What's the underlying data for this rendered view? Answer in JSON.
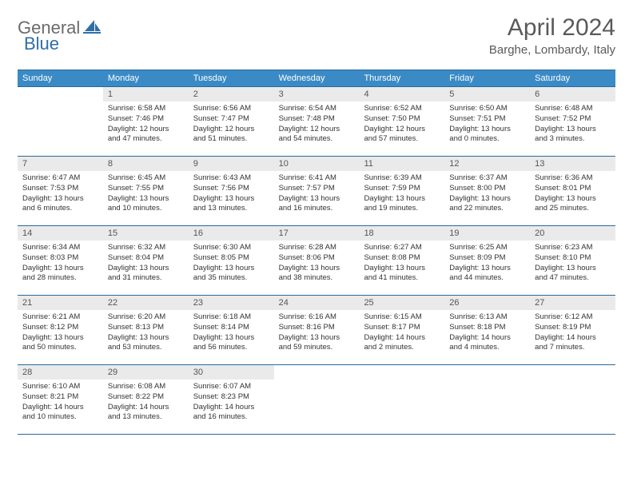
{
  "logo": {
    "part1": "General",
    "part2": "Blue"
  },
  "title": "April 2024",
  "location": "Barghe, Lombardy, Italy",
  "colors": {
    "header_bg": "#3a8ac6",
    "header_border": "#2a6a9a",
    "daynum_bg": "#eaeaea",
    "text": "#333333",
    "title_text": "#5a5a5a",
    "logo_gray": "#6b6b6b",
    "logo_blue": "#2f6fa8"
  },
  "weekdays": [
    "Sunday",
    "Monday",
    "Tuesday",
    "Wednesday",
    "Thursday",
    "Friday",
    "Saturday"
  ],
  "weeks": [
    [
      {
        "empty": true
      },
      {
        "n": "1",
        "sunrise": "6:58 AM",
        "sunset": "7:46 PM",
        "daylight": "12 hours and 47 minutes."
      },
      {
        "n": "2",
        "sunrise": "6:56 AM",
        "sunset": "7:47 PM",
        "daylight": "12 hours and 51 minutes."
      },
      {
        "n": "3",
        "sunrise": "6:54 AM",
        "sunset": "7:48 PM",
        "daylight": "12 hours and 54 minutes."
      },
      {
        "n": "4",
        "sunrise": "6:52 AM",
        "sunset": "7:50 PM",
        "daylight": "12 hours and 57 minutes."
      },
      {
        "n": "5",
        "sunrise": "6:50 AM",
        "sunset": "7:51 PM",
        "daylight": "13 hours and 0 minutes."
      },
      {
        "n": "6",
        "sunrise": "6:48 AM",
        "sunset": "7:52 PM",
        "daylight": "13 hours and 3 minutes."
      }
    ],
    [
      {
        "n": "7",
        "sunrise": "6:47 AM",
        "sunset": "7:53 PM",
        "daylight": "13 hours and 6 minutes."
      },
      {
        "n": "8",
        "sunrise": "6:45 AM",
        "sunset": "7:55 PM",
        "daylight": "13 hours and 10 minutes."
      },
      {
        "n": "9",
        "sunrise": "6:43 AM",
        "sunset": "7:56 PM",
        "daylight": "13 hours and 13 minutes."
      },
      {
        "n": "10",
        "sunrise": "6:41 AM",
        "sunset": "7:57 PM",
        "daylight": "13 hours and 16 minutes."
      },
      {
        "n": "11",
        "sunrise": "6:39 AM",
        "sunset": "7:59 PM",
        "daylight": "13 hours and 19 minutes."
      },
      {
        "n": "12",
        "sunrise": "6:37 AM",
        "sunset": "8:00 PM",
        "daylight": "13 hours and 22 minutes."
      },
      {
        "n": "13",
        "sunrise": "6:36 AM",
        "sunset": "8:01 PM",
        "daylight": "13 hours and 25 minutes."
      }
    ],
    [
      {
        "n": "14",
        "sunrise": "6:34 AM",
        "sunset": "8:03 PM",
        "daylight": "13 hours and 28 minutes."
      },
      {
        "n": "15",
        "sunrise": "6:32 AM",
        "sunset": "8:04 PM",
        "daylight": "13 hours and 31 minutes."
      },
      {
        "n": "16",
        "sunrise": "6:30 AM",
        "sunset": "8:05 PM",
        "daylight": "13 hours and 35 minutes."
      },
      {
        "n": "17",
        "sunrise": "6:28 AM",
        "sunset": "8:06 PM",
        "daylight": "13 hours and 38 minutes."
      },
      {
        "n": "18",
        "sunrise": "6:27 AM",
        "sunset": "8:08 PM",
        "daylight": "13 hours and 41 minutes."
      },
      {
        "n": "19",
        "sunrise": "6:25 AM",
        "sunset": "8:09 PM",
        "daylight": "13 hours and 44 minutes."
      },
      {
        "n": "20",
        "sunrise": "6:23 AM",
        "sunset": "8:10 PM",
        "daylight": "13 hours and 47 minutes."
      }
    ],
    [
      {
        "n": "21",
        "sunrise": "6:21 AM",
        "sunset": "8:12 PM",
        "daylight": "13 hours and 50 minutes."
      },
      {
        "n": "22",
        "sunrise": "6:20 AM",
        "sunset": "8:13 PM",
        "daylight": "13 hours and 53 minutes."
      },
      {
        "n": "23",
        "sunrise": "6:18 AM",
        "sunset": "8:14 PM",
        "daylight": "13 hours and 56 minutes."
      },
      {
        "n": "24",
        "sunrise": "6:16 AM",
        "sunset": "8:16 PM",
        "daylight": "13 hours and 59 minutes."
      },
      {
        "n": "25",
        "sunrise": "6:15 AM",
        "sunset": "8:17 PM",
        "daylight": "14 hours and 2 minutes."
      },
      {
        "n": "26",
        "sunrise": "6:13 AM",
        "sunset": "8:18 PM",
        "daylight": "14 hours and 4 minutes."
      },
      {
        "n": "27",
        "sunrise": "6:12 AM",
        "sunset": "8:19 PM",
        "daylight": "14 hours and 7 minutes."
      }
    ],
    [
      {
        "n": "28",
        "sunrise": "6:10 AM",
        "sunset": "8:21 PM",
        "daylight": "14 hours and 10 minutes."
      },
      {
        "n": "29",
        "sunrise": "6:08 AM",
        "sunset": "8:22 PM",
        "daylight": "14 hours and 13 minutes."
      },
      {
        "n": "30",
        "sunrise": "6:07 AM",
        "sunset": "8:23 PM",
        "daylight": "14 hours and 16 minutes."
      },
      {
        "empty": true
      },
      {
        "empty": true
      },
      {
        "empty": true
      },
      {
        "empty": true
      }
    ]
  ],
  "labels": {
    "sunrise_prefix": "Sunrise: ",
    "sunset_prefix": "Sunset: ",
    "daylight_prefix": "Daylight: "
  }
}
